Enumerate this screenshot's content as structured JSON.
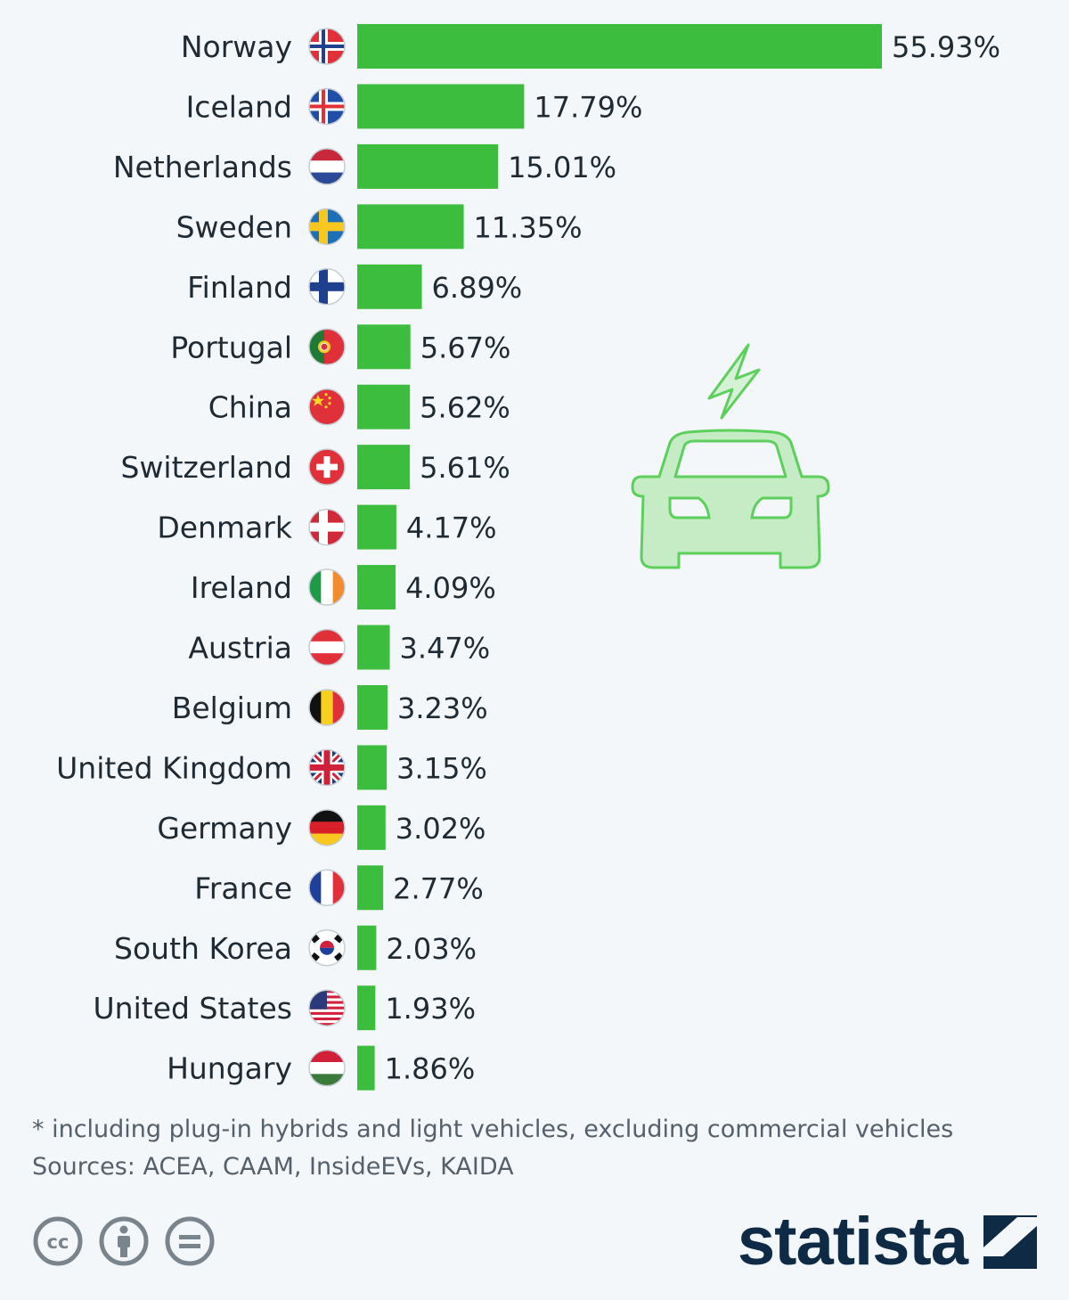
{
  "chart_data": {
    "type": "bar",
    "orientation": "horizontal",
    "title": "",
    "xlabel": "",
    "ylabel": "",
    "categories": [
      "Norway",
      "Iceland",
      "Netherlands",
      "Sweden",
      "Finland",
      "Portugal",
      "China",
      "Switzerland",
      "Denmark",
      "Ireland",
      "Austria",
      "Belgium",
      "United Kingdom",
      "Germany",
      "France",
      "South Korea",
      "United States",
      "Hungary"
    ],
    "values": [
      55.93,
      17.79,
      15.01,
      11.35,
      6.89,
      5.67,
      5.62,
      5.61,
      4.17,
      4.09,
      3.47,
      3.23,
      3.15,
      3.02,
      2.77,
      2.03,
      1.93,
      1.86
    ],
    "value_labels": [
      "55.93%",
      "17.79%",
      "15.01%",
      "11.35%",
      "6.89%",
      "5.67%",
      "5.62%",
      "5.61%",
      "4.17%",
      "4.09%",
      "3.47%",
      "3.23%",
      "3.15%",
      "3.02%",
      "2.77%",
      "2.03%",
      "1.93%",
      "1.86%"
    ],
    "flag_icons": [
      "norway-flag-icon",
      "iceland-flag-icon",
      "netherlands-flag-icon",
      "sweden-flag-icon",
      "finland-flag-icon",
      "portugal-flag-icon",
      "china-flag-icon",
      "switzerland-flag-icon",
      "denmark-flag-icon",
      "ireland-flag-icon",
      "austria-flag-icon",
      "belgium-flag-icon",
      "united-kingdom-flag-icon",
      "germany-flag-icon",
      "france-flag-icon",
      "south-korea-flag-icon",
      "united-states-flag-icon",
      "hungary-flag-icon"
    ],
    "xlim": [
      0,
      55.93
    ],
    "grid": false,
    "bar_color": "#3dbd3d",
    "illustration": "electric-car-icon"
  },
  "footer": {
    "note": "* including plug-in hybrids and light vehicles, excluding commercial vehicles",
    "sources": "Sources: ACEA, CAAM, InsideEVs, KAIDA",
    "license_icons": [
      "cc-icon",
      "attribution-icon",
      "no-derivatives-icon"
    ],
    "brand": "statista"
  },
  "colors": {
    "background": "#f3f7fa",
    "bar": "#3dbd3d",
    "text": "#1f2a33",
    "muted": "#55606a",
    "brand": "#0f2a44",
    "car_stroke": "#5ccf5c",
    "car_fill": "#c6ecc6"
  }
}
